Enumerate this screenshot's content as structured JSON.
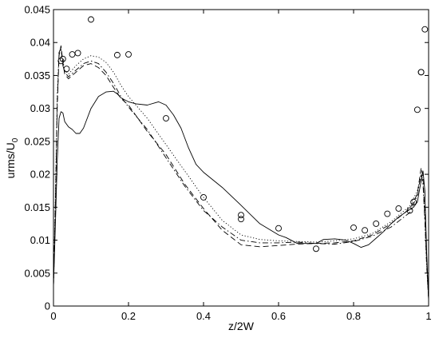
{
  "chart_data": {
    "type": "line",
    "title": "",
    "xlabel": "z/2W",
    "ylabel": "urms/U",
    "ylabel_subscript": "0",
    "xlim": [
      0,
      1
    ],
    "ylim": [
      0,
      0.045
    ],
    "xticks": [
      "0",
      "0.2",
      "0.4",
      "0.6",
      "0.8",
      "1"
    ],
    "yticks": [
      "0",
      "0.005",
      "0.01",
      "0.015",
      "0.02",
      "0.025",
      "0.03",
      "0.035",
      "0.04",
      "0.045"
    ],
    "grid": false,
    "series": [
      {
        "style": "solid",
        "x": [
          0,
          0.005,
          0.01,
          0.015,
          0.02,
          0.025,
          0.03,
          0.04,
          0.05,
          0.06,
          0.07,
          0.08,
          0.09,
          0.1,
          0.12,
          0.14,
          0.16,
          0.17,
          0.18,
          0.2,
          0.22,
          0.25,
          0.28,
          0.3,
          0.32,
          0.34,
          0.36,
          0.38,
          0.4,
          0.45,
          0.5,
          0.55,
          0.6,
          0.62,
          0.65,
          0.7,
          0.72,
          0.75,
          0.78,
          0.8,
          0.82,
          0.84,
          0.86,
          0.88,
          0.9,
          0.92,
          0.94,
          0.96,
          0.97,
          0.98,
          0.985,
          0.99,
          0.995,
          1.0
        ],
        "y": [
          0.003,
          0.012,
          0.022,
          0.0285,
          0.0295,
          0.0293,
          0.028,
          0.0272,
          0.0268,
          0.0262,
          0.0262,
          0.027,
          0.0285,
          0.03,
          0.0318,
          0.0325,
          0.0326,
          0.0322,
          0.0316,
          0.031,
          0.0307,
          0.0305,
          0.031,
          0.0305,
          0.029,
          0.027,
          0.024,
          0.0215,
          0.0203,
          0.018,
          0.0153,
          0.0125,
          0.0108,
          0.0104,
          0.0095,
          0.0095,
          0.0101,
          0.0102,
          0.01,
          0.0095,
          0.0089,
          0.0093,
          0.0103,
          0.0113,
          0.0125,
          0.0135,
          0.0143,
          0.015,
          0.0158,
          0.019,
          0.0205,
          0.0175,
          0.008,
          0.001
        ]
      },
      {
        "style": "dashed",
        "x": [
          0,
          0.005,
          0.01,
          0.015,
          0.02,
          0.025,
          0.03,
          0.04,
          0.06,
          0.08,
          0.1,
          0.12,
          0.14,
          0.16,
          0.18,
          0.2,
          0.25,
          0.3,
          0.35,
          0.4,
          0.45,
          0.5,
          0.55,
          0.6,
          0.65,
          0.7,
          0.75,
          0.8,
          0.85,
          0.9,
          0.95,
          0.97,
          0.98,
          0.985,
          0.99,
          0.995,
          1.0
        ],
        "y": [
          0.003,
          0.015,
          0.03,
          0.038,
          0.0395,
          0.037,
          0.0352,
          0.0345,
          0.0355,
          0.0365,
          0.0368,
          0.0362,
          0.035,
          0.0332,
          0.0315,
          0.0305,
          0.0265,
          0.023,
          0.0185,
          0.0148,
          0.0115,
          0.0093,
          0.009,
          0.0092,
          0.0094,
          0.0095,
          0.0096,
          0.0099,
          0.0108,
          0.0125,
          0.0148,
          0.017,
          0.021,
          0.0195,
          0.014,
          0.007,
          0.001
        ]
      },
      {
        "style": "dotted",
        "x": [
          0,
          0.005,
          0.01,
          0.015,
          0.02,
          0.025,
          0.03,
          0.04,
          0.06,
          0.08,
          0.1,
          0.12,
          0.14,
          0.16,
          0.18,
          0.2,
          0.25,
          0.3,
          0.35,
          0.4,
          0.45,
          0.5,
          0.55,
          0.6,
          0.65,
          0.7,
          0.75,
          0.8,
          0.85,
          0.9,
          0.95,
          0.97,
          0.98,
          0.985,
          0.99,
          0.995,
          1.0
        ],
        "y": [
          0.003,
          0.016,
          0.032,
          0.0385,
          0.039,
          0.0372,
          0.0358,
          0.0352,
          0.0365,
          0.0375,
          0.038,
          0.0378,
          0.037,
          0.0355,
          0.0335,
          0.0318,
          0.0285,
          0.0245,
          0.0205,
          0.0165,
          0.013,
          0.0108,
          0.0101,
          0.0099,
          0.0098,
          0.0097,
          0.0099,
          0.0102,
          0.011,
          0.0128,
          0.0152,
          0.0175,
          0.02,
          0.019,
          0.013,
          0.006,
          0.001
        ]
      },
      {
        "style": "dashdot",
        "x": [
          0,
          0.005,
          0.01,
          0.015,
          0.02,
          0.025,
          0.03,
          0.04,
          0.06,
          0.08,
          0.1,
          0.12,
          0.14,
          0.16,
          0.18,
          0.2,
          0.25,
          0.3,
          0.35,
          0.4,
          0.45,
          0.5,
          0.55,
          0.6,
          0.65,
          0.7,
          0.75,
          0.8,
          0.85,
          0.9,
          0.95,
          0.97,
          0.98,
          0.985,
          0.99,
          0.995,
          1.0
        ],
        "y": [
          0.003,
          0.014,
          0.031,
          0.0385,
          0.0392,
          0.0365,
          0.0355,
          0.0348,
          0.0358,
          0.0368,
          0.0372,
          0.0368,
          0.0355,
          0.0338,
          0.0318,
          0.0302,
          0.0268,
          0.0225,
          0.0182,
          0.0145,
          0.012,
          0.01,
          0.0096,
          0.0096,
          0.0097,
          0.0095,
          0.0094,
          0.0098,
          0.0106,
          0.012,
          0.0142,
          0.0168,
          0.02,
          0.0185,
          0.013,
          0.006,
          0.001
        ]
      },
      {
        "style": "markers",
        "marker": "circle",
        "x": [
          0.02,
          0.025,
          0.035,
          0.05,
          0.065,
          0.1,
          0.17,
          0.2,
          0.3,
          0.4,
          0.5,
          0.5,
          0.6,
          0.7,
          0.8,
          0.83,
          0.86,
          0.89,
          0.92,
          0.95,
          0.96,
          0.97,
          0.98,
          0.98,
          0.99
        ],
        "y": [
          0.0372,
          0.0375,
          0.036,
          0.0382,
          0.0384,
          0.0435,
          0.0381,
          0.0382,
          0.0285,
          0.0165,
          0.0138,
          0.0132,
          0.0118,
          0.0087,
          0.0119,
          0.0115,
          0.0125,
          0.014,
          0.0148,
          0.0145,
          0.0158,
          0.0298,
          0.0355,
          0.0355,
          0.042
        ]
      }
    ]
  }
}
